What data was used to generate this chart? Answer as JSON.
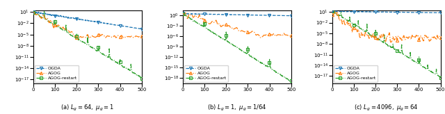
{
  "subplots": [
    {
      "title": "(a) $L_g = 64,\\ \\mu_g = 1$",
      "ylim": [
        1e-18,
        30.0
      ],
      "yticks": [
        10.0,
        0.01,
        1e-05,
        1e-08,
        1e-11,
        1e-14,
        1e-17
      ],
      "ogda_start": 10,
      "ogda_end": 0.0003,
      "agog_start": 10,
      "agog_plateau": 3e-06,
      "agog_plateau_start": 200,
      "restart_start": 10,
      "restart_end": 3e-17,
      "restart_period": 50
    },
    {
      "title": "(b) $L_g = 1,\\ \\mu_g = 1/64$",
      "ylim": [
        3e-20,
        30.0
      ],
      "yticks": [
        1.0,
        0.001,
        1e-06,
        1e-09,
        1e-12,
        1e-15,
        1e-18
      ],
      "ogda_start": 3,
      "ogda_end": 0.8,
      "agog_start": 3,
      "agog_plateau": 2e-06,
      "agog_plateau_start": 350,
      "restart_start": 3,
      "restart_end": 1e-19,
      "restart_period": 100
    },
    {
      "title": "(c) $L_g = 4096,\\ \\mu_g = 64$",
      "ylim": [
        1e-19,
        30.0
      ],
      "yticks": [
        10.0,
        0.01,
        1e-05,
        1e-08,
        1e-11,
        1e-14,
        1e-17
      ],
      "ogda_start": 15,
      "ogda_end": 6,
      "agog_start": 15,
      "agog_plateau": 5e-07,
      "agog_plateau_start": 150,
      "restart_start": 15,
      "restart_end": 5e-18,
      "restart_period": 40
    }
  ],
  "ogda_color": "#1f77b4",
  "agog_color": "#ff7f0e",
  "restart_color": "#2ca02c",
  "xlim": [
    0,
    500
  ],
  "xticks": [
    0,
    100,
    200,
    300,
    400,
    500
  ]
}
